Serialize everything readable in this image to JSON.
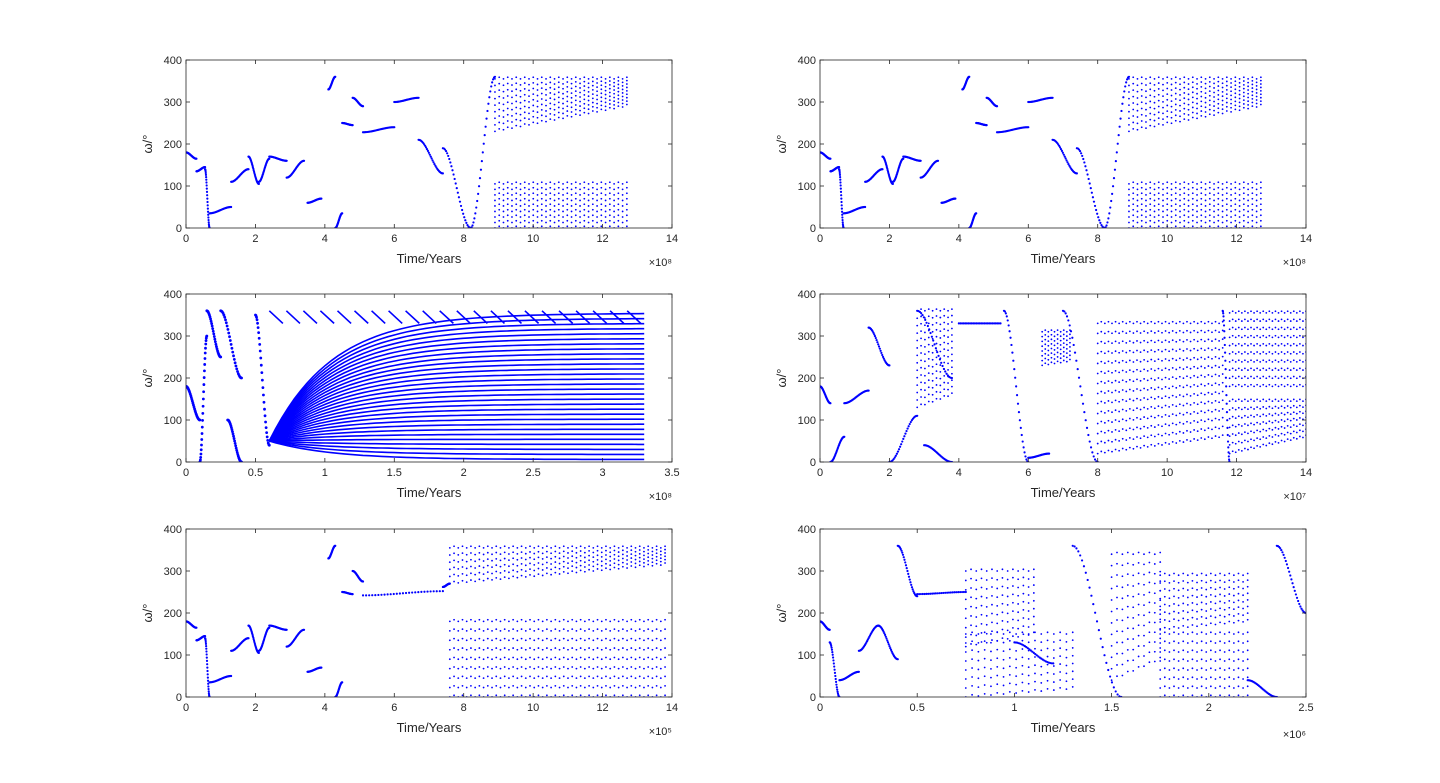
{
  "colors": {
    "series": "#0000ff",
    "axis": "#262626",
    "background": "#ffffff"
  },
  "chart_data": [
    {
      "type": "scatter",
      "id": "a",
      "xlabel": "Time/Years",
      "ylabel": "ω/°",
      "x_exponent": "×10⁸",
      "xlim": [
        0,
        14
      ],
      "ylim": [
        0,
        400
      ],
      "xticks": [
        0,
        2,
        4,
        6,
        8,
        10,
        12,
        14
      ],
      "xtick_labels": [
        "0",
        "2",
        "4",
        "6",
        "8",
        "10",
        "12",
        "14"
      ],
      "yticks": [
        0,
        100,
        200,
        300,
        400
      ],
      "ytick_labels": [
        "0",
        "100",
        "200",
        "300",
        "400"
      ],
      "series": [
        {
          "segments": [
            {
              "x0": 0.0,
              "x1": 0.3,
              "y0": 180,
              "y1": 165
            },
            {
              "x0": 0.3,
              "x1": 0.55,
              "y0": 135,
              "y1": 145
            },
            {
              "x0": 0.55,
              "x1": 0.68,
              "y0": 140,
              "y1": 0
            },
            {
              "x0": 0.68,
              "x1": 1.3,
              "y0": 35,
              "y1": 50
            },
            {
              "x0": 1.3,
              "x1": 1.8,
              "y0": 110,
              "y1": 140
            },
            {
              "x0": 1.8,
              "x1": 2.1,
              "y0": 170,
              "y1": 105
            },
            {
              "x0": 2.1,
              "x1": 2.4,
              "y0": 110,
              "y1": 165
            },
            {
              "x0": 2.4,
              "x1": 2.9,
              "y0": 170,
              "y1": 160
            },
            {
              "x0": 2.9,
              "x1": 3.4,
              "y0": 120,
              "y1": 160
            },
            {
              "x0": 3.5,
              "x1": 3.9,
              "y0": 60,
              "y1": 70
            },
            {
              "x0": 4.1,
              "x1": 4.3,
              "y0": 330,
              "y1": 360
            },
            {
              "x0": 4.3,
              "x1": 4.5,
              "y0": 0,
              "y1": 35
            },
            {
              "x0": 4.5,
              "x1": 4.8,
              "y0": 250,
              "y1": 245
            },
            {
              "x0": 4.8,
              "x1": 5.1,
              "y0": 310,
              "y1": 290
            },
            {
              "x0": 5.1,
              "x1": 6.0,
              "y0": 228,
              "y1": 240
            },
            {
              "x0": 6.0,
              "x1": 6.7,
              "y0": 300,
              "y1": 310
            },
            {
              "x0": 6.7,
              "x1": 7.4,
              "y0": 210,
              "y1": 130
            },
            {
              "x0": 7.4,
              "x1": 8.2,
              "y0": 190,
              "y1": 0
            },
            {
              "x0": 8.2,
              "x1": 8.9,
              "y0": 0,
              "y1": 360
            }
          ],
          "bands": [
            {
              "x0": 8.9,
              "x1": 12.7,
              "y_lo0": 230,
              "y_lo1": 290,
              "y_hi": 355,
              "cols": 32,
              "rows": 9
            },
            {
              "x0": 8.9,
              "x1": 12.7,
              "y_lo0": 0,
              "y_lo1": 0,
              "y_hi": 105,
              "cols": 32,
              "rows": 9
            }
          ]
        }
      ]
    },
    {
      "type": "scatter",
      "id": "b",
      "xlabel": "Time/Years",
      "ylabel": "ω/°",
      "x_exponent": "×10⁸",
      "xlim": [
        0,
        14
      ],
      "ylim": [
        0,
        400
      ],
      "xticks": [
        0,
        2,
        4,
        6,
        8,
        10,
        12,
        14
      ],
      "xtick_labels": [
        "0",
        "2",
        "4",
        "6",
        "8",
        "10",
        "12",
        "14"
      ],
      "yticks": [
        0,
        100,
        200,
        300,
        400
      ],
      "ytick_labels": [
        "0",
        "100",
        "200",
        "300",
        "400"
      ],
      "series": [
        {
          "segments": [
            {
              "x0": 0.0,
              "x1": 0.3,
              "y0": 180,
              "y1": 165
            },
            {
              "x0": 0.3,
              "x1": 0.55,
              "y0": 135,
              "y1": 145
            },
            {
              "x0": 0.55,
              "x1": 0.68,
              "y0": 140,
              "y1": 0
            },
            {
              "x0": 0.68,
              "x1": 1.3,
              "y0": 35,
              "y1": 50
            },
            {
              "x0": 1.3,
              "x1": 1.8,
              "y0": 110,
              "y1": 140
            },
            {
              "x0": 1.8,
              "x1": 2.1,
              "y0": 170,
              "y1": 105
            },
            {
              "x0": 2.1,
              "x1": 2.4,
              "y0": 110,
              "y1": 165
            },
            {
              "x0": 2.4,
              "x1": 2.9,
              "y0": 170,
              "y1": 160
            },
            {
              "x0": 2.9,
              "x1": 3.4,
              "y0": 120,
              "y1": 160
            },
            {
              "x0": 3.5,
              "x1": 3.9,
              "y0": 60,
              "y1": 70
            },
            {
              "x0": 4.1,
              "x1": 4.3,
              "y0": 330,
              "y1": 360
            },
            {
              "x0": 4.3,
              "x1": 4.5,
              "y0": 0,
              "y1": 35
            },
            {
              "x0": 4.5,
              "x1": 4.8,
              "y0": 250,
              "y1": 245
            },
            {
              "x0": 4.8,
              "x1": 5.1,
              "y0": 310,
              "y1": 290
            },
            {
              "x0": 5.1,
              "x1": 6.0,
              "y0": 228,
              "y1": 240
            },
            {
              "x0": 6.0,
              "x1": 6.7,
              "y0": 300,
              "y1": 310
            },
            {
              "x0": 6.7,
              "x1": 7.4,
              "y0": 210,
              "y1": 130
            },
            {
              "x0": 7.4,
              "x1": 8.2,
              "y0": 190,
              "y1": 0
            },
            {
              "x0": 8.2,
              "x1": 8.9,
              "y0": 0,
              "y1": 360
            }
          ],
          "bands": [
            {
              "x0": 8.9,
              "x1": 12.7,
              "y_lo0": 230,
              "y_lo1": 290,
              "y_hi": 355,
              "cols": 32,
              "rows": 9
            },
            {
              "x0": 8.9,
              "x1": 12.7,
              "y_lo0": 0,
              "y_lo1": 0,
              "y_hi": 105,
              "cols": 32,
              "rows": 9
            }
          ]
        }
      ]
    },
    {
      "type": "line",
      "id": "c",
      "xlabel": "Time/Years",
      "ylabel": "ω/°",
      "x_exponent": "×10⁸",
      "xlim": [
        0,
        3.5
      ],
      "ylim": [
        0,
        400
      ],
      "xticks": [
        0,
        0.5,
        1,
        1.5,
        2,
        2.5,
        3,
        3.5
      ],
      "xtick_labels": [
        "0",
        "0.5",
        "1",
        "1.5",
        "2",
        "2.5",
        "3",
        "3.5"
      ],
      "yticks": [
        0,
        100,
        200,
        300,
        400
      ],
      "ytick_labels": [
        "0",
        "100",
        "200",
        "300",
        "400"
      ],
      "series": [
        {
          "segments": [
            {
              "x0": 0.0,
              "x1": 0.1,
              "y0": 180,
              "y1": 100
            },
            {
              "x0": 0.1,
              "x1": 0.15,
              "y0": 0,
              "y1": 300
            },
            {
              "x0": 0.15,
              "x1": 0.25,
              "y0": 360,
              "y1": 250
            },
            {
              "x0": 0.25,
              "x1": 0.4,
              "y0": 360,
              "y1": 200
            },
            {
              "x0": 0.3,
              "x1": 0.4,
              "y0": 100,
              "y1": 0
            },
            {
              "x0": 0.5,
              "x1": 0.6,
              "y0": 350,
              "y1": 40
            }
          ],
          "fan": {
            "x0": 0.6,
            "x1": 3.3,
            "y0": 50,
            "y_hi": 360,
            "count": 30
          }
        }
      ]
    },
    {
      "type": "scatter",
      "id": "d",
      "xlabel": "Time/Years",
      "ylabel": "ω/°",
      "x_exponent": "×10⁷",
      "xlim": [
        0,
        14
      ],
      "ylim": [
        0,
        400
      ],
      "xticks": [
        0,
        2,
        4,
        6,
        8,
        10,
        12,
        14
      ],
      "xtick_labels": [
        "0",
        "2",
        "4",
        "6",
        "8",
        "10",
        "12",
        "14"
      ],
      "yticks": [
        0,
        100,
        200,
        300,
        400
      ],
      "ytick_labels": [
        "0",
        "100",
        "200",
        "300",
        "400"
      ],
      "series": [
        {
          "segments": [
            {
              "x0": 0.0,
              "x1": 0.3,
              "y0": 180,
              "y1": 140
            },
            {
              "x0": 0.3,
              "x1": 0.7,
              "y0": 0,
              "y1": 60
            },
            {
              "x0": 0.7,
              "x1": 1.4,
              "y0": 140,
              "y1": 170
            },
            {
              "x0": 1.4,
              "x1": 2.0,
              "y0": 320,
              "y1": 230
            },
            {
              "x0": 2.0,
              "x1": 2.8,
              "y0": 0,
              "y1": 110
            },
            {
              "x0": 2.8,
              "x1": 3.8,
              "y0": 360,
              "y1": 200
            },
            {
              "x0": 3.0,
              "x1": 3.8,
              "y0": 40,
              "y1": 0
            },
            {
              "x0": 4.0,
              "x1": 5.2,
              "y0": 330,
              "y1": 330
            },
            {
              "x0": 5.3,
              "x1": 6.0,
              "y0": 360,
              "y1": 0
            },
            {
              "x0": 6.0,
              "x1": 6.6,
              "y0": 10,
              "y1": 20
            },
            {
              "x0": 7.0,
              "x1": 8.0,
              "y0": 360,
              "y1": 0
            },
            {
              "x0": 11.6,
              "x1": 11.8,
              "y0": 360,
              "y1": 0
            }
          ],
          "bands": [
            {
              "x0": 2.8,
              "x1": 3.8,
              "y_lo0": 130,
              "y_lo1": 160,
              "y_hi": 360,
              "cols": 10,
              "rows": 14
            },
            {
              "x0": 6.4,
              "x1": 7.2,
              "y_lo0": 230,
              "y_lo1": 240,
              "y_hi": 310,
              "cols": 10,
              "rows": 8
            },
            {
              "x0": 8.0,
              "x1": 11.6,
              "y_lo0": 20,
              "y_lo1": 60,
              "y_hi": 330,
              "cols": 36,
              "rows": 14
            },
            {
              "x0": 11.8,
              "x1": 14.0,
              "y_lo0": 180,
              "y_lo1": 180,
              "y_hi": 355,
              "cols": 26,
              "rows": 10
            },
            {
              "x0": 11.8,
              "x1": 14.0,
              "y_lo0": 20,
              "y_lo1": 60,
              "y_hi": 145,
              "cols": 26,
              "rows": 7
            }
          ]
        }
      ]
    },
    {
      "type": "scatter",
      "id": "e",
      "xlabel": "Time/Years",
      "ylabel": "ω/°",
      "x_exponent": "×10⁵",
      "xlim": [
        0,
        14
      ],
      "ylim": [
        0,
        400
      ],
      "xticks": [
        0,
        2,
        4,
        6,
        8,
        10,
        12,
        14
      ],
      "xtick_labels": [
        "0",
        "2",
        "4",
        "6",
        "8",
        "10",
        "12",
        "14"
      ],
      "yticks": [
        0,
        100,
        200,
        300,
        400
      ],
      "ytick_labels": [
        "0",
        "100",
        "200",
        "300",
        "400"
      ],
      "series": [
        {
          "segments": [
            {
              "x0": 0.0,
              "x1": 0.3,
              "y0": 180,
              "y1": 165
            },
            {
              "x0": 0.3,
              "x1": 0.55,
              "y0": 135,
              "y1": 145
            },
            {
              "x0": 0.55,
              "x1": 0.68,
              "y0": 140,
              "y1": 0
            },
            {
              "x0": 0.68,
              "x1": 1.3,
              "y0": 35,
              "y1": 50
            },
            {
              "x0": 1.3,
              "x1": 1.8,
              "y0": 110,
              "y1": 140
            },
            {
              "x0": 1.8,
              "x1": 2.1,
              "y0": 170,
              "y1": 105
            },
            {
              "x0": 2.1,
              "x1": 2.4,
              "y0": 110,
              "y1": 165
            },
            {
              "x0": 2.4,
              "x1": 2.9,
              "y0": 170,
              "y1": 160
            },
            {
              "x0": 2.9,
              "x1": 3.4,
              "y0": 120,
              "y1": 160
            },
            {
              "x0": 3.5,
              "x1": 3.9,
              "y0": 60,
              "y1": 70
            },
            {
              "x0": 4.1,
              "x1": 4.3,
              "y0": 330,
              "y1": 360
            },
            {
              "x0": 4.3,
              "x1": 4.5,
              "y0": 0,
              "y1": 35
            },
            {
              "x0": 4.5,
              "x1": 4.8,
              "y0": 250,
              "y1": 245
            },
            {
              "x0": 4.8,
              "x1": 5.1,
              "y0": 300,
              "y1": 275
            },
            {
              "x0": 5.1,
              "x1": 7.4,
              "y0": 242,
              "y1": 252
            },
            {
              "x0": 7.4,
              "x1": 7.6,
              "y0": 262,
              "y1": 270
            }
          ],
          "bands": [
            {
              "x0": 7.6,
              "x1": 13.8,
              "y_lo0": 270,
              "y_lo1": 315,
              "y_hi": 355,
              "cols": 52,
              "rows": 6
            },
            {
              "x0": 7.6,
              "x1": 13.8,
              "y_lo0": 0,
              "y_lo1": 0,
              "y_hi": 180,
              "cols": 52,
              "rows": 9
            }
          ]
        }
      ]
    },
    {
      "type": "scatter",
      "id": "f",
      "xlabel": "Time/Years",
      "ylabel": "ω/°",
      "x_exponent": "×10⁶",
      "xlim": [
        0,
        2.5
      ],
      "ylim": [
        0,
        400
      ],
      "xticks": [
        0,
        0.5,
        1,
        1.5,
        2,
        2.5
      ],
      "xtick_labels": [
        "0",
        "0.5",
        "1",
        "1.5",
        "2",
        "2.5"
      ],
      "yticks": [
        0,
        100,
        200,
        300,
        400
      ],
      "ytick_labels": [
        "0",
        "100",
        "200",
        "300",
        "400"
      ],
      "series": [
        {
          "segments": [
            {
              "x0": 0.0,
              "x1": 0.05,
              "y0": 180,
              "y1": 160
            },
            {
              "x0": 0.05,
              "x1": 0.1,
              "y0": 130,
              "y1": 0
            },
            {
              "x0": 0.1,
              "x1": 0.2,
              "y0": 40,
              "y1": 60
            },
            {
              "x0": 0.2,
              "x1": 0.3,
              "y0": 110,
              "y1": 170
            },
            {
              "x0": 0.3,
              "x1": 0.4,
              "y0": 170,
              "y1": 90
            },
            {
              "x0": 0.4,
              "x1": 0.5,
              "y0": 360,
              "y1": 240
            },
            {
              "x0": 0.5,
              "x1": 0.75,
              "y0": 245,
              "y1": 250
            },
            {
              "x0": 1.0,
              "x1": 1.2,
              "y0": 130,
              "y1": 80
            },
            {
              "x0": 1.3,
              "x1": 1.55,
              "y0": 360,
              "y1": 0
            },
            {
              "x0": 2.2,
              "x1": 2.35,
              "y0": 40,
              "y1": 0
            },
            {
              "x0": 2.35,
              "x1": 2.5,
              "y0": 360,
              "y1": 200
            }
          ],
          "bands": [
            {
              "x0": 0.75,
              "x1": 1.1,
              "y_lo0": 120,
              "y_lo1": 150,
              "y_hi": 300,
              "cols": 14,
              "rows": 9
            },
            {
              "x0": 0.75,
              "x1": 1.3,
              "y_lo0": 0,
              "y_lo1": 20,
              "y_hi": 150,
              "cols": 18,
              "rows": 8
            },
            {
              "x0": 1.5,
              "x1": 1.75,
              "y_lo0": 40,
              "y_lo1": 90,
              "y_hi": 340,
              "cols": 10,
              "rows": 12
            },
            {
              "x0": 1.75,
              "x1": 2.2,
              "y_lo0": 160,
              "y_lo1": 180,
              "y_hi": 290,
              "cols": 20,
              "rows": 8
            },
            {
              "x0": 1.75,
              "x1": 2.2,
              "y_lo0": 0,
              "y_lo1": 0,
              "y_hi": 150,
              "cols": 20,
              "rows": 8
            }
          ]
        }
      ]
    }
  ]
}
